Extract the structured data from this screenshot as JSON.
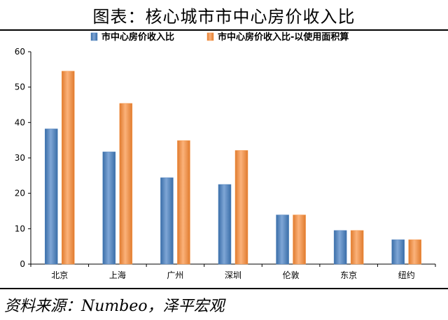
{
  "page": {
    "title": "图表：核心城市市中心房价收入比",
    "source": "资料来源：Numbeo，泽平宏观"
  },
  "chart_data": {
    "type": "bar",
    "title": "",
    "xlabel": "",
    "ylabel": "",
    "categories": [
      "北京",
      "上海",
      "广州",
      "深圳",
      "伦敦",
      "东京",
      "纽约"
    ],
    "series": [
      {
        "name": "市中心房价收入比",
        "values": [
          38.2,
          31.7,
          24.4,
          22.5,
          13.9,
          9.5,
          6.9
        ],
        "color": "#4F81BD"
      },
      {
        "name": "市中心房价收入比-以使用面积算",
        "values": [
          54.5,
          45.4,
          34.9,
          32.1,
          13.9,
          9.5,
          6.9
        ],
        "color": "#F79646"
      }
    ],
    "ylim": [
      0,
      60
    ],
    "yticks": [
      0,
      10,
      20,
      30,
      40,
      50,
      60
    ],
    "legend_position": "top",
    "grid": false
  }
}
